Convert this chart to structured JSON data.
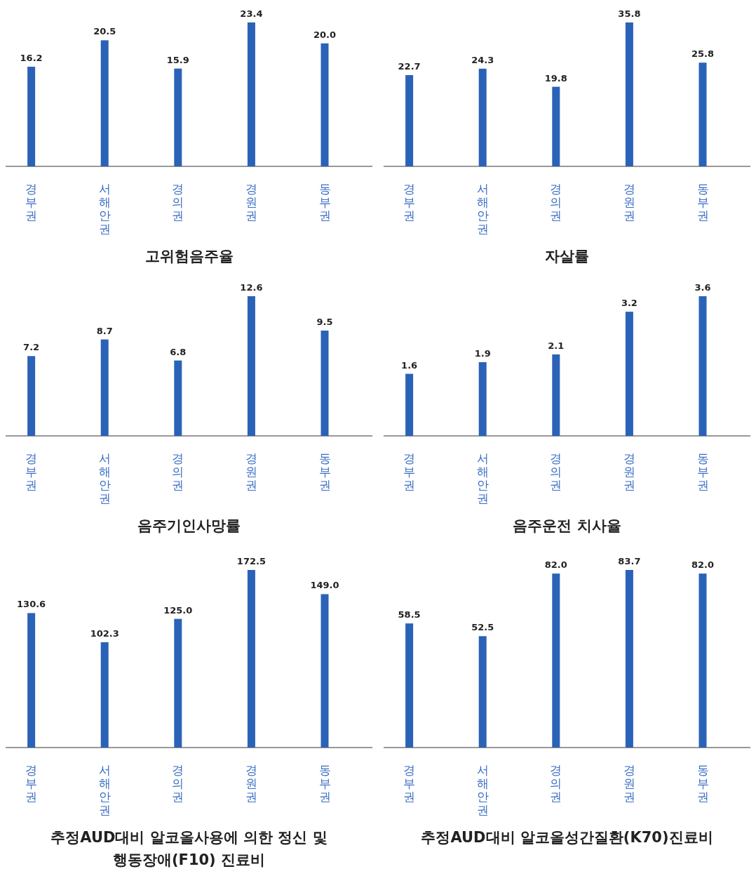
{
  "chart_data": [
    {
      "type": "bar",
      "title": "고위험음주율",
      "categories": [
        "경부권",
        "서해안권",
        "경의권",
        "경원권",
        "동부권"
      ],
      "values": [
        16.2,
        20.5,
        15.9,
        23.4,
        20.0
      ],
      "value_labels": [
        "16.2",
        "20.5",
        "15.9",
        "23.4",
        "20.0"
      ],
      "color": "#2a62b8"
    },
    {
      "type": "bar",
      "title": "자살률",
      "categories": [
        "경부권",
        "서해안권",
        "경의권",
        "경원권",
        "동부권"
      ],
      "values": [
        22.7,
        24.3,
        19.8,
        35.8,
        25.8
      ],
      "value_labels": [
        "22.7",
        "24.3",
        "19.8",
        "35.8",
        "25.8"
      ],
      "color": "#2a62b8"
    },
    {
      "type": "bar",
      "title": "음주기인사망률",
      "categories": [
        "경부권",
        "서해안권",
        "경의권",
        "경원권",
        "동부권"
      ],
      "values": [
        7.2,
        8.7,
        6.8,
        12.6,
        9.5
      ],
      "value_labels": [
        "7.2",
        "8.7",
        "6.8",
        "12.6",
        "9.5"
      ],
      "color": "#2a62b8"
    },
    {
      "type": "bar",
      "title": "음주운전 치사율",
      "categories": [
        "경부권",
        "서해안권",
        "경의권",
        "경원권",
        "동부권"
      ],
      "values": [
        1.6,
        1.9,
        2.1,
        3.2,
        3.6
      ],
      "value_labels": [
        "1.6",
        "1.9",
        "2.1",
        "3.2",
        "3.6"
      ],
      "color": "#2a62b8"
    },
    {
      "type": "bar",
      "title": "추정AUD대비 알코올사용에 의한 정신 및 행동장애(F10) 진료비",
      "categories": [
        "경부권",
        "서해안권",
        "경의권",
        "경원권",
        "동부권"
      ],
      "values": [
        130.6,
        102.3,
        125.0,
        172.5,
        149.0
      ],
      "value_labels": [
        "130.6",
        "102.3",
        "125.0",
        "172.5",
        "149.0"
      ],
      "color": "#2a62b8"
    },
    {
      "type": "bar",
      "title": "추정AUD대비 알코올성간질환(K70)진료비",
      "categories": [
        "경부권",
        "서해안권",
        "경의권",
        "경원권",
        "동부권"
      ],
      "values": [
        58.5,
        52.5,
        82.0,
        83.7,
        82.0
      ],
      "value_labels": [
        "58.5",
        "52.5",
        "82.0",
        "83.7",
        "82.0"
      ],
      "color": "#2a62b8"
    }
  ]
}
